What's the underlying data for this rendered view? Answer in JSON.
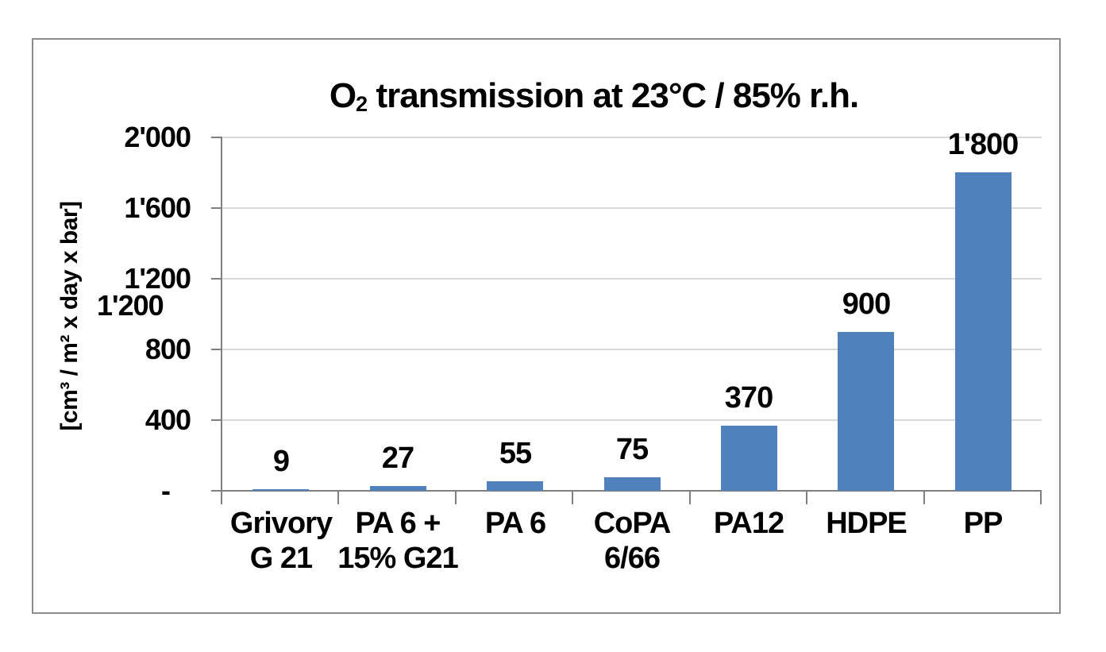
{
  "chart_data": {
    "type": "bar",
    "title": "O2 transmission at 23°C / 85% r.h.",
    "title_parts": {
      "prefix": "O",
      "subscript": "2",
      "rest": " transmission at 23°C / 85% r.h."
    },
    "ylabel": "[cm³ / m² x day x bar]",
    "categories": [
      "Grivory G 21",
      "PA 6 + 15% G21",
      "PA 6",
      "CoPA 6/66",
      "PA12",
      "HDPE",
      "PP"
    ],
    "category_label_lines": [
      [
        "Grivory",
        "G 21"
      ],
      [
        "PA 6 +",
        "15% G21"
      ],
      [
        "PA 6"
      ],
      [
        "CoPA",
        "6/66"
      ],
      [
        "PA12"
      ],
      [
        "HDPE"
      ],
      [
        "PP"
      ]
    ],
    "values": [
      9,
      27,
      55,
      75,
      370,
      900,
      1800
    ],
    "data_labels": [
      "9",
      "27",
      "55",
      "75",
      "370",
      "900",
      "1'800"
    ],
    "ylim": [
      0,
      2000
    ],
    "ytick_step": 400,
    "ytick_labels": [
      "-",
      "400",
      "800",
      "1'200",
      "1'600",
      "2'000"
    ],
    "duplicate_ytick_label": "1'200",
    "grid": true,
    "legend": "none",
    "bar_color": "#4F81BD",
    "axis_color": "#808080",
    "gridline_color": "#D9D9D9",
    "text_color": "#000000"
  }
}
